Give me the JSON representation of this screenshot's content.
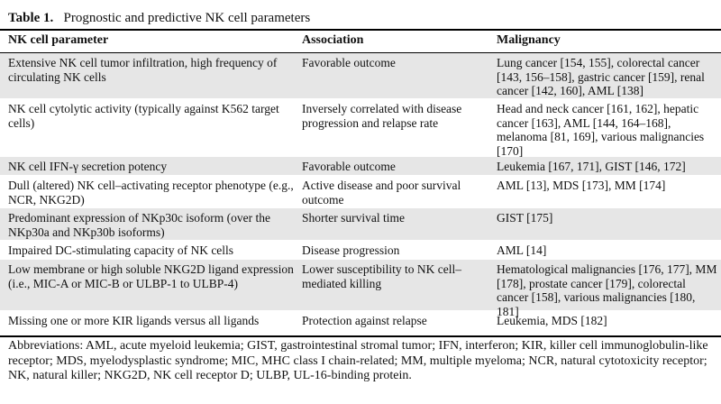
{
  "table": {
    "number": "Table 1.",
    "title": "Prognostic and predictive NK cell parameters",
    "headers": [
      "NK cell parameter",
      "Association",
      "Malignancy"
    ],
    "rows": [
      {
        "parameter": "Extensive NK cell tumor infiltration, high frequency of circulating NK cells",
        "association": "Favorable outcome",
        "malignancy": "Lung cancer [154, 155], colorectal cancer [143, 156–158], gastric cancer [159], renal cancer [142, 160], AML [138]"
      },
      {
        "parameter": "NK cell cytolytic activity (typically against K562 target cells)",
        "association": "Inversely correlated with disease progression and relapse rate",
        "malignancy": "Head and neck cancer [161, 162], hepatic cancer [163], AML [144, 164–168], melanoma [81, 169], various malignancies [170]"
      },
      {
        "parameter": "NK cell IFN-γ secretion potency",
        "association": "Favorable outcome",
        "malignancy": "Leukemia [167, 171], GIST [146, 172]"
      },
      {
        "parameter": "Dull (altered) NK cell–activating receptor phenotype (e.g., NCR, NKG2D)",
        "association": "Active disease and poor survival outcome",
        "malignancy": "AML [13], MDS [173], MM [174]"
      },
      {
        "parameter": "Predominant expression of NKp30c isoform (over the NKp30a and NKp30b isoforms)",
        "association": "Shorter survival time",
        "malignancy": "GIST [175]"
      },
      {
        "parameter": "Impaired DC-stimulating capacity of NK cells",
        "association": "Disease progression",
        "malignancy": "AML [14]"
      },
      {
        "parameter": "Low membrane or high soluble NKG2D ligand expression (i.e., MIC-A or MIC-B or ULBP-1 to ULBP-4)",
        "association": "Lower susceptibility to NK cell–mediated killing",
        "malignancy": "Hematological malignancies [176, 177], MM [178], prostate cancer [179], colorectal cancer [158], various malignancies [180, 181]"
      },
      {
        "parameter": "Missing one or more KIR ligands versus all ligands",
        "association": "Protection against relapse",
        "malignancy": "Leukemia, MDS [182]"
      }
    ],
    "abbreviations": "Abbreviations: AML, acute myeloid leukemia; GIST, gastrointestinal stromal tumor; IFN, interferon; KIR, killer cell immunoglobulin-like receptor; MDS, myelodysplastic syndrome; MIC, MHC class I chain-related; MM, multiple myeloma; NCR, natural cytotoxicity receptor; NK, natural killer; NKG2D, NK cell receptor D; ULBP, UL-16-binding protein."
  }
}
